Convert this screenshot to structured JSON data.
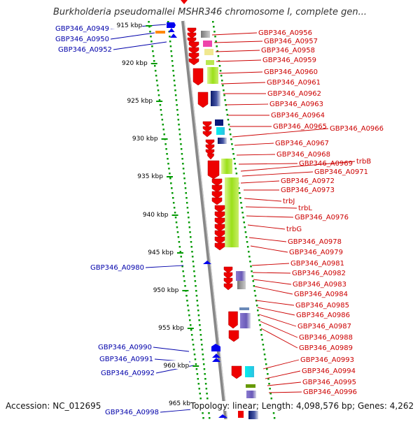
{
  "title": "Burkholderia pseudomallei MSHR346 chromosome I, complete gen...",
  "accession_text": "Accession: NC_012695",
  "summary_text": "Topology: linear; Length: 4,098,576 bp; Genes: 4,262",
  "colors": {
    "forward_label": "#cc0000",
    "reverse_label": "#0000aa",
    "gene_red": "#ee0000",
    "gene_blue": "#0000ee",
    "ruler": "#009900",
    "axis": "#888888"
  },
  "ruler_ticks": [
    "915 kbp",
    "920 kbp",
    "925 kbp",
    "930 kbp",
    "935 kbp",
    "940 kbp",
    "945 kbp",
    "950 kbp",
    "955 kbp",
    "960 kbp",
    "965 kbp"
  ],
  "left_labels": [
    "GBP346_A0949",
    "GBP346_A0950",
    "GBP346_A0952",
    "GBP346_A0980",
    "GBP346_A0990",
    "GBP346_A0991",
    "GBP346_A0992",
    "GBP346_A0998"
  ],
  "right_labels": [
    "GBP346_A0956",
    "GBP346_A0957",
    "GBP346_A0958",
    "GBP346_A0959",
    "GBP346_A0960",
    "GBP346_A0961",
    "GBP346_A0962",
    "GBP346_A0963",
    "GBP346_A0964",
    "GBP346_A0965",
    "GBP346_A0966",
    "GBP346_A0967",
    "GBP346_A0968",
    "GBP346_A0969",
    "trbB",
    "GBP346_A0971",
    "GBP346_A0972",
    "GBP346_A0973",
    "trbJ",
    "trbL",
    "GBP346_A0976",
    "trbG",
    "GBP346_A0978",
    "GBP346_A0979",
    "GBP346_A0981",
    "GBP346_A0982",
    "GBP346_A0983",
    "GBP346_A0984",
    "GBP346_A0985",
    "GBP346_A0986",
    "GBP346_A0987",
    "GBP346_A0988",
    "GBP346_A0989",
    "GBP346_A0993",
    "GBP346_A0994",
    "GBP346_A0995",
    "GBP346_A0996"
  ]
}
